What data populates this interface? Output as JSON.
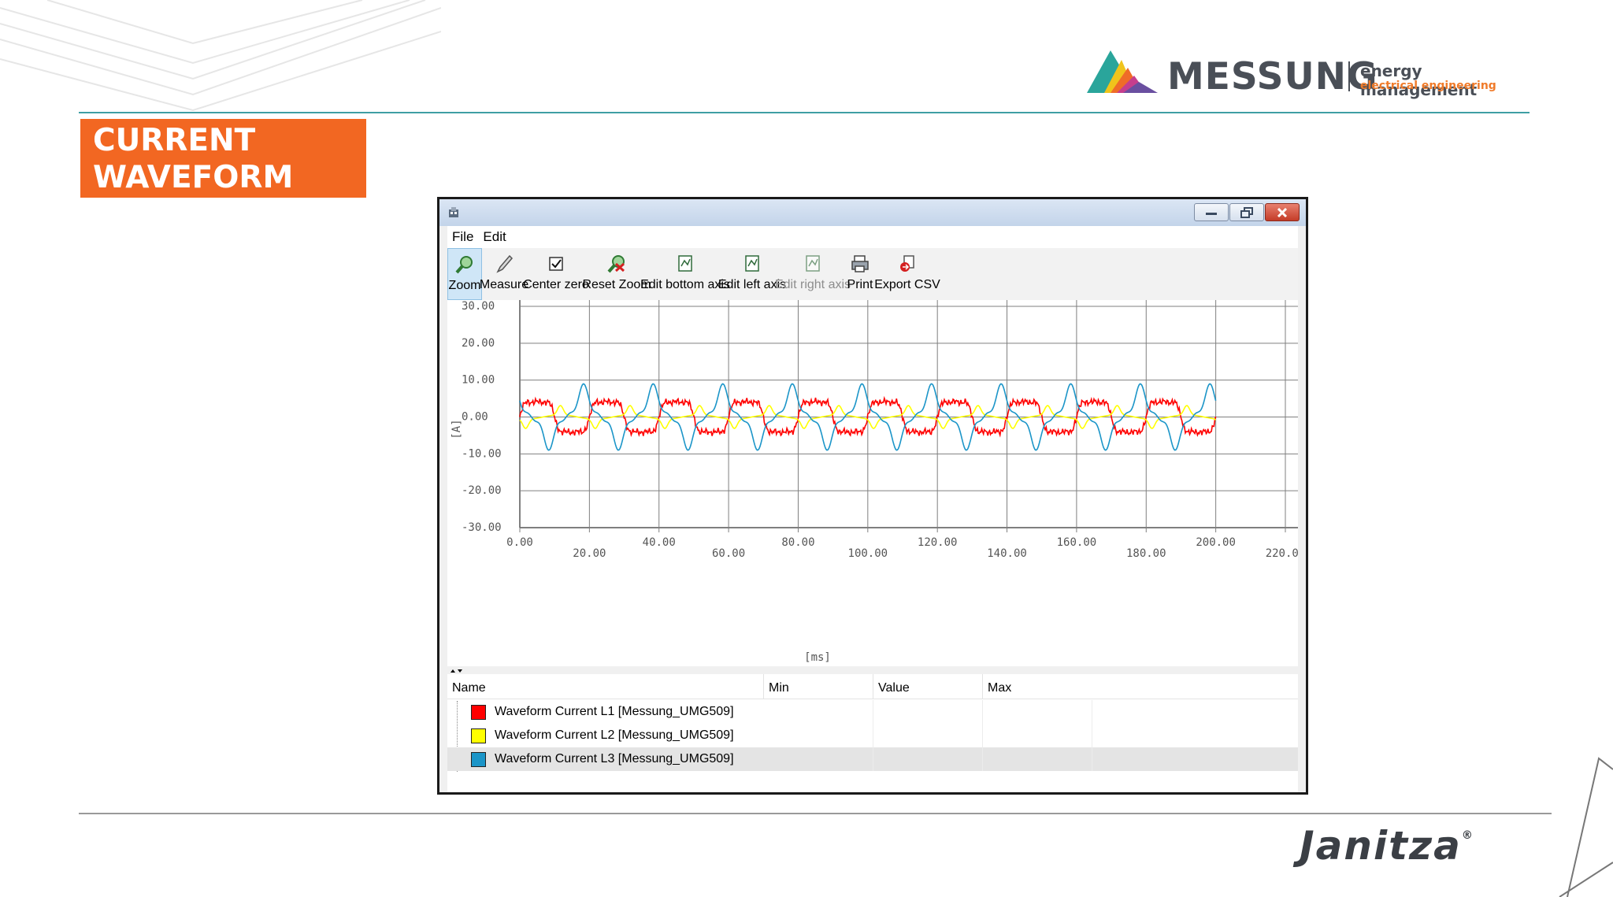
{
  "slide": {
    "title_line1": "CURRENT",
    "title_line2": "WAVEFORM",
    "logo_main": "MESSUNG",
    "logo_sub1": "energy management",
    "logo_sub2": "electrical engineering",
    "brand": "Janitza",
    "brand_mark": "®",
    "accent_color": "#f26722"
  },
  "window": {
    "menu": [
      "File",
      "Edit"
    ],
    "toolbar": [
      {
        "label": "Zoom",
        "icon": "zoom-icon",
        "active": true
      },
      {
        "label": "Measure",
        "icon": "measure-icon"
      },
      {
        "label": "Center zero",
        "icon": "checkbox-icon"
      },
      {
        "label": "Reset Zoom",
        "icon": "reset-zoom-icon"
      },
      {
        "label": "Edit bottom axis",
        "icon": "axis-icon"
      },
      {
        "label": "Edit left axis",
        "icon": "axis-icon"
      },
      {
        "label": "Edit right axis",
        "icon": "axis-icon",
        "disabled": true
      },
      {
        "label": "Print",
        "icon": "print-icon"
      },
      {
        "label": "Export CSV",
        "icon": "export-csv-icon"
      }
    ],
    "legend_table": {
      "columns": [
        "Name",
        "Min",
        "Value",
        "Max"
      ],
      "rows": [
        {
          "name": "Waveform Current L1 [Messung_UMG509]",
          "color": "#ff0000"
        },
        {
          "name": "Waveform Current L2 [Messung_UMG509]",
          "color": "#ffff00"
        },
        {
          "name": "Waveform Current L3 [Messung_UMG509]",
          "color": "#1b95c8",
          "selected": true
        }
      ]
    }
  },
  "chart_data": {
    "type": "line",
    "xlabel": "[ms]",
    "ylabel": "[A]",
    "xlim": [
      0,
      220
    ],
    "ylim": [
      -30,
      30
    ],
    "x_ticks": [
      "0.00",
      "20.00",
      "40.00",
      "60.00",
      "80.00",
      "100.00",
      "120.00",
      "140.00",
      "160.00",
      "180.00",
      "200.00",
      "220.00"
    ],
    "y_ticks": [
      "30.00",
      "20.00",
      "10.00",
      "0.00",
      "-10.00",
      "-20.00",
      "-30.00"
    ],
    "grid": true,
    "fundamental_hz": 50,
    "series": [
      {
        "name": "Waveform Current L1 [Messung_UMG509]",
        "color": "#ff0000",
        "amplitude_a": 5,
        "phase_deg": 0,
        "x_range": [
          0,
          200
        ]
      },
      {
        "name": "Waveform Current L2 [Messung_UMG509]",
        "color": "#ffff00",
        "amplitude_a": 1,
        "phase_deg": -120,
        "x_range": [
          0,
          200
        ]
      },
      {
        "name": "Waveform Current L3 [Messung_UMG509]",
        "color": "#1b95c8",
        "amplitude_a": 6,
        "phase_deg": 120,
        "x_range": [
          0,
          200
        ]
      }
    ]
  }
}
